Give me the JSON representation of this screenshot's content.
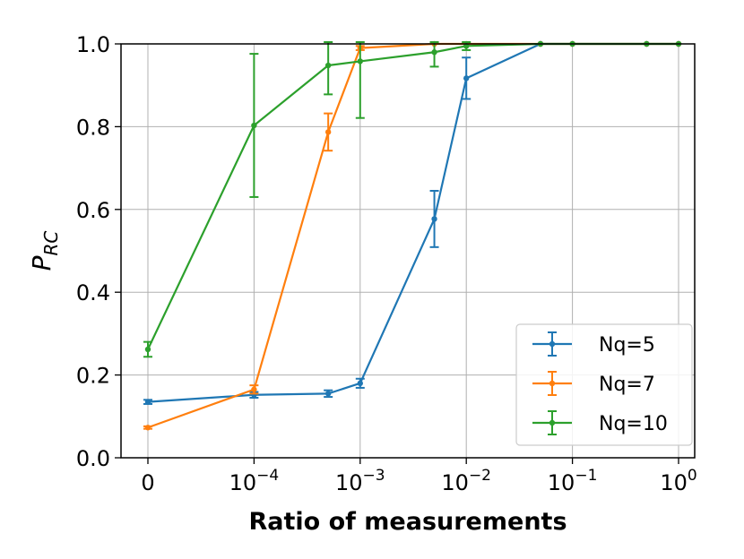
{
  "chart_data": {
    "type": "line",
    "title": "",
    "xlabel": "Ratio of measurements",
    "ylabel": {
      "base": "P",
      "sub": "RC"
    },
    "ylim": [
      0.0,
      1.0
    ],
    "yticks": [
      {
        "value": 0.0,
        "label": "0.0"
      },
      {
        "value": 0.2,
        "label": "0.2"
      },
      {
        "value": 0.4,
        "label": "0.4"
      },
      {
        "value": 0.6,
        "label": "0.6"
      },
      {
        "value": 0.8,
        "label": "0.8"
      },
      {
        "value": 1.0,
        "label": "1.0"
      }
    ],
    "xscale": "symlog",
    "xticks": [
      {
        "value": 0,
        "base": "0",
        "exp": ""
      },
      {
        "value": 0.0001,
        "base": "10",
        "exp": "−4"
      },
      {
        "value": 0.001,
        "base": "10",
        "exp": "−3"
      },
      {
        "value": 0.01,
        "base": "10",
        "exp": "−2"
      },
      {
        "value": 0.1,
        "base": "10",
        "exp": "−1"
      },
      {
        "value": 1,
        "base": "10",
        "exp": "0"
      }
    ],
    "x": [
      0,
      0.0001,
      0.0005,
      0.001,
      0.005,
      0.01,
      0.05,
      0.1,
      0.5,
      1
    ],
    "grid": true,
    "legend_position": "lower-right",
    "series": [
      {
        "name": "Nq=5",
        "color": "#1f77b4",
        "values": [
          0.135,
          0.152,
          0.155,
          0.18,
          0.577,
          0.917,
          1.0,
          1.0,
          1.0,
          1.0
        ],
        "errors": [
          0.005,
          0.007,
          0.008,
          0.011,
          0.068,
          0.05,
          0.0,
          0.0,
          0.0,
          0.0
        ]
      },
      {
        "name": "Nq=7",
        "color": "#ff7f0e",
        "values": [
          0.073,
          0.165,
          0.787,
          0.99,
          1.0,
          1.0,
          1.0,
          1.0,
          1.0,
          1.0
        ],
        "errors": [
          0.003,
          0.01,
          0.045,
          0.005,
          0.0,
          0.0,
          0.0,
          0.0,
          0.0,
          0.0
        ]
      },
      {
        "name": "Nq=10",
        "color": "#2ca02c",
        "values": [
          0.262,
          0.803,
          0.948,
          0.958,
          0.98,
          0.995,
          1.0,
          1.0,
          1.0,
          1.0
        ],
        "errors": [
          0.018,
          0.173,
          0.07,
          0.137,
          0.035,
          0.01,
          0.0,
          0.0,
          0.0,
          0.0
        ]
      }
    ]
  }
}
